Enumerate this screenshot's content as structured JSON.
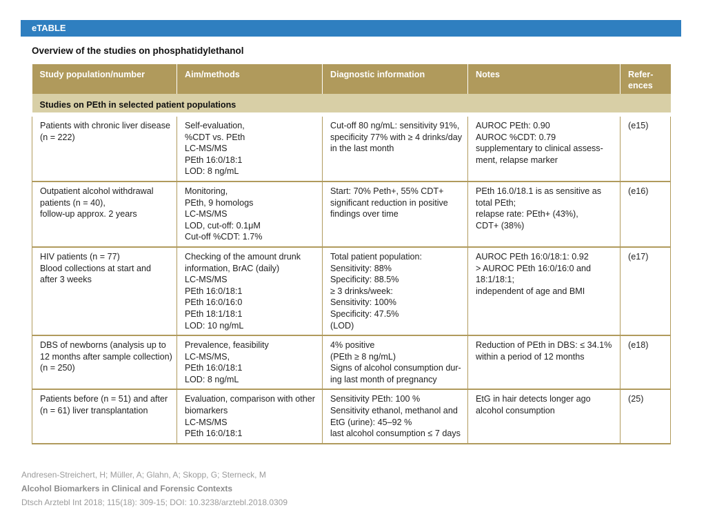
{
  "header": {
    "label": "eTABLE"
  },
  "table_title": "Overview of the studies on phosphatidylethanol",
  "columns": [
    "Study population/number",
    "Aim/methods",
    "Diagnostic information",
    "Notes",
    "Refer-\nences"
  ],
  "section_title": "Studies on PEth in selected patient populations",
  "rows": [
    {
      "population": "Patients with chronic liver disease\n(n = 222)",
      "methods": "Self-evaluation,\n%CDT vs. PEth\nLC-MS/MS\nPEth 16:0/18:1\nLOD: 8 ng/mL",
      "diagnostic": "Cut-off 80 ng/mL: sensitivity 91%,\nspecificity 77% with ≥ 4 drinks/day\nin the last month",
      "notes": "AUROC PEth: 0.90\nAUROC %CDT: 0.79\nsupplementary to clinical assess-\nment, relapse marker",
      "ref": "(e15)"
    },
    {
      "population": "Outpatient alcohol withdrawal\npatients (n = 40),\nfollow-up approx. 2 years",
      "methods": "Monitoring,\nPEth, 9 homologs\nLC-MS/MS\nLOD, cut-off: 0.1μM\nCut-off %CDT: 1.7%",
      "diagnostic": "Start: 70% Peth+, 55% CDT+\nsignificant reduction in positive\nfindings over time",
      "notes": "PEth 16.0/18.1 is as sensitive as\ntotal PEth;\nrelapse rate: PEth+ (43%),\nCDT+ (38%)",
      "ref": "(e16)"
    },
    {
      "population": "HIV patients (n = 77)\nBlood collections at start and\nafter 3 weeks",
      "methods": "Checking of the amount drunk\ninformation, BrAC (daily)\nLC-MS/MS\nPEth 16:0/18:1\nPEth 16:0/16:0\nPEth 18:1/18:1\nLOD: 10 ng/mL",
      "diagnostic": "Total patient population:\nSensitivity: 88%\nSpecificity: 88.5%\n≥ 3 drinks/week:\nSensitivity: 100%\nSpecificity: 47.5%\n(LOD)",
      "notes": "AUROC PEth 16:0/18:1: 0.92\n> AUROC PEth 16:0/16:0 and\n18:1/18:1;\nindependent of age and BMI",
      "ref": "(e17)"
    },
    {
      "population": "DBS of newborns (analysis up to\n12 months after sample collection)\n(n = 250)",
      "methods": "Prevalence, feasibility\nLC-MS/MS,\nPEth 16:0/18:1\nLOD: 8 ng/mL",
      "diagnostic": "4% positive\n(PEth ≥ 8 ng/mL)\nSigns of alcohol consumption dur-\ning last month of pregnancy",
      "notes": "Reduction of PEth in DBS: ≤ 34.1%\nwithin a period of 12 months",
      "ref": "(e18)"
    },
    {
      "population": "Patients before (n = 51) and after\n(n = 61) liver transplantation",
      "methods": "Evaluation, comparison with other\nbiomarkers\nLC-MS/MS\nPEth 16:0/18:1",
      "diagnostic": "Sensitivity PEth: 100 %\nSensitivity ethanol, methanol and\nEtG (urine): 45–92 %\nlast alcohol consumption ≤ 7 days",
      "notes": "EtG in hair detects longer ago\nalcohol consumption",
      "ref": "(25)"
    }
  ],
  "citation": {
    "authors": "Andresen-Streichert, H; Müller, A; Glahn, A; Skopp, G; Sterneck, M",
    "title": "Alcohol Biomarkers in Clinical and Forensic Contexts",
    "source": "Dtsch Arztebl Int 2018; 115(18): 309-15; DOI: 10.3238/arztebl.2018.0309"
  },
  "colors": {
    "header_blue": "#2f7fc0",
    "column_header": "#b09a5c",
    "section_band": "#d8cfa6"
  }
}
